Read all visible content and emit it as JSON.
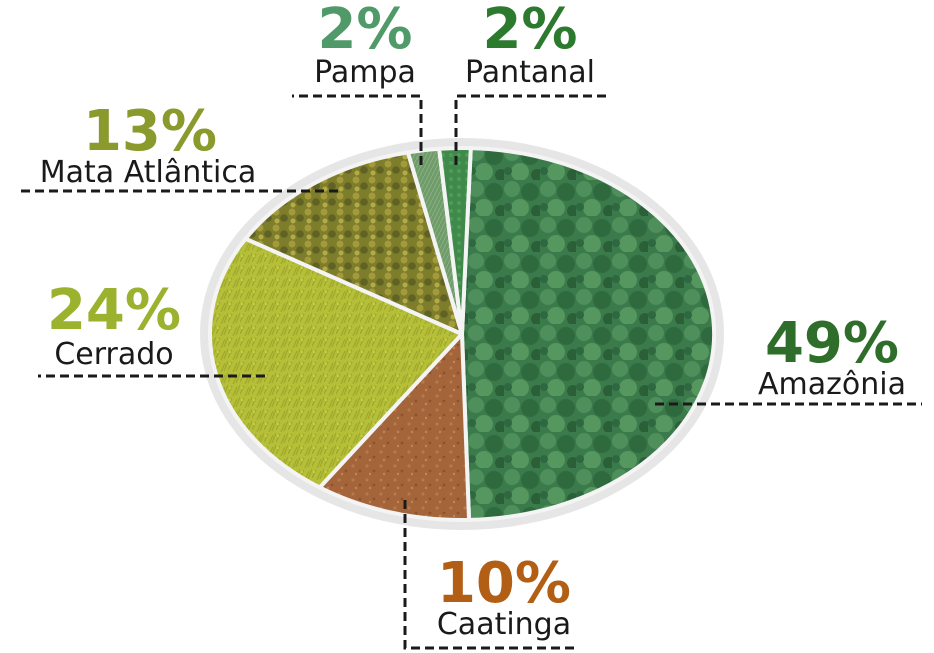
{
  "chart_data": {
    "type": "pie",
    "title": "",
    "categories": [
      "Amazônia",
      "Caatinga",
      "Cerrado",
      "Mata Atlântica",
      "Pampa",
      "Pantanal"
    ],
    "values": [
      49,
      10,
      24,
      13,
      2,
      2
    ],
    "labels": [
      "49%",
      "10%",
      "24%",
      "13%",
      "2%",
      "2%"
    ],
    "colors": [
      "#3e7d4e",
      "#a8683a",
      "#b9c23a",
      "#8a8a2e",
      "#6f9c6a",
      "#3f8a4a"
    ],
    "label_colors": [
      "#2f6d2a",
      "#b25e14",
      "#9bb22e",
      "#8b9a2c",
      "#4f9a68",
      "#2c7a2e"
    ],
    "legend": "none"
  }
}
